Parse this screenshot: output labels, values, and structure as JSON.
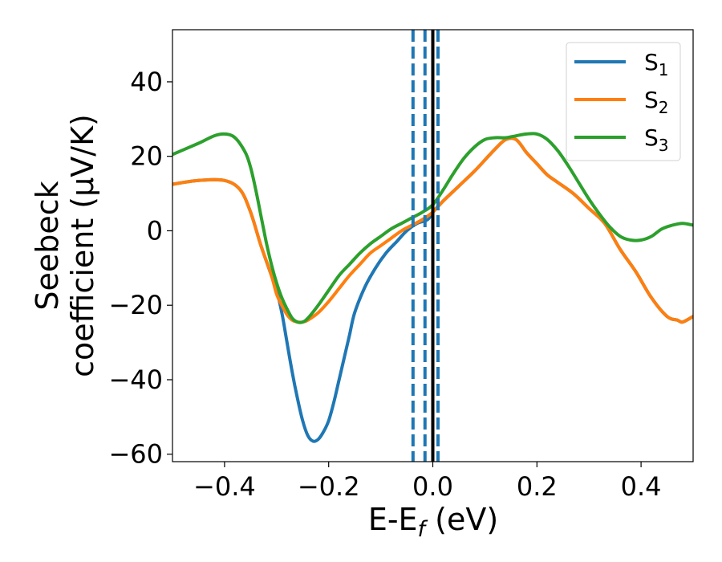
{
  "chart_data": {
    "type": "line",
    "xlabel": "E-E",
    "xlabel_sub": "f",
    "xlabel_unit": " (eV)",
    "ylabel_line1": "Seebeck",
    "ylabel_line2": "coefficient  (μV/K)",
    "xlim": [
      -0.5,
      0.5
    ],
    "ylim": [
      -62,
      54
    ],
    "xticks": [
      -0.4,
      -0.2,
      0.0,
      0.2,
      0.4
    ],
    "xtick_labels": [
      "−0.4",
      "−0.2",
      "0.0",
      "0.2",
      "0.4"
    ],
    "yticks": [
      -60,
      -40,
      -20,
      0,
      20,
      40
    ],
    "ytick_labels": [
      "−60",
      "−40",
      "−20",
      "0",
      "20",
      "40"
    ],
    "legend_position": "top-right",
    "vlines": [
      {
        "x": 0.0,
        "style": "solid",
        "color": "#000000"
      },
      {
        "x": -0.038,
        "style": "dashed",
        "color": "#1f77b4"
      },
      {
        "x": -0.015,
        "style": "dashed",
        "color": "#1f77b4"
      },
      {
        "x": 0.01,
        "style": "dashed",
        "color": "#1f77b4"
      }
    ],
    "series": [
      {
        "name": "S",
        "name_sub": "1",
        "color": "#1f77b4",
        "x": [
          -0.5,
          -0.45,
          -0.4,
          -0.37,
          -0.35,
          -0.33,
          -0.31,
          -0.3,
          -0.29,
          -0.28,
          -0.27,
          -0.26,
          -0.25,
          -0.24,
          -0.23,
          -0.22,
          -0.21,
          -0.2,
          -0.19,
          -0.18,
          -0.17,
          -0.16,
          -0.15,
          -0.13,
          -0.11,
          -0.09,
          -0.07,
          -0.05,
          -0.03,
          -0.01,
          0.0,
          0.02,
          0.05,
          0.08,
          0.1,
          0.12,
          0.14,
          0.16,
          0.18,
          0.2,
          0.22,
          0.24,
          0.27,
          0.3,
          0.33,
          0.36,
          0.39,
          0.42,
          0.45,
          0.47,
          0.48,
          0.5
        ],
        "y": [
          12.5,
          13.5,
          13.5,
          11,
          5,
          -4,
          -12,
          -16,
          -22,
          -30,
          -38,
          -45,
          -51,
          -55,
          -56.5,
          -56,
          -54,
          -51,
          -46,
          -40,
          -34,
          -28,
          -22,
          -15,
          -10,
          -6,
          -3,
          0,
          2,
          3,
          5,
          8,
          12,
          16,
          19,
          22,
          24.5,
          24.5,
          21,
          18,
          15,
          13,
          10,
          6,
          2,
          -5,
          -11,
          -18,
          -23,
          -24,
          -24.5,
          -23
        ]
      },
      {
        "name": "S",
        "name_sub": "2",
        "color": "#ff7f0e",
        "x": [
          -0.5,
          -0.45,
          -0.4,
          -0.37,
          -0.35,
          -0.33,
          -0.31,
          -0.3,
          -0.29,
          -0.28,
          -0.27,
          -0.26,
          -0.25,
          -0.24,
          -0.22,
          -0.2,
          -0.18,
          -0.16,
          -0.14,
          -0.12,
          -0.1,
          -0.08,
          -0.06,
          -0.04,
          -0.02,
          0.0,
          0.02,
          0.05,
          0.08,
          0.1,
          0.12,
          0.14,
          0.16,
          0.18,
          0.2,
          0.22,
          0.24,
          0.27,
          0.3,
          0.33,
          0.36,
          0.39,
          0.42,
          0.45,
          0.47,
          0.48,
          0.5
        ],
        "y": [
          12.5,
          13.5,
          13.5,
          11,
          5,
          -4,
          -12,
          -17,
          -20,
          -22.5,
          -24,
          -24.5,
          -24.5,
          -24,
          -22,
          -19,
          -15.5,
          -12,
          -9,
          -6,
          -4,
          -2,
          0,
          1.5,
          3,
          5,
          8,
          12,
          16,
          19,
          22,
          24.5,
          24.5,
          21,
          18,
          15,
          13,
          10,
          6,
          2,
          -5,
          -11,
          -18,
          -23,
          -24,
          -24.5,
          -23
        ]
      },
      {
        "name": "S",
        "name_sub": "3",
        "color": "#2ca02c",
        "x": [
          -0.5,
          -0.45,
          -0.42,
          -0.4,
          -0.38,
          -0.36,
          -0.35,
          -0.34,
          -0.33,
          -0.32,
          -0.31,
          -0.3,
          -0.29,
          -0.28,
          -0.27,
          -0.26,
          -0.25,
          -0.24,
          -0.22,
          -0.2,
          -0.18,
          -0.16,
          -0.14,
          -0.12,
          -0.1,
          -0.08,
          -0.06,
          -0.04,
          -0.02,
          0.0,
          0.02,
          0.04,
          0.06,
          0.08,
          0.1,
          0.12,
          0.14,
          0.16,
          0.18,
          0.2,
          0.22,
          0.24,
          0.26,
          0.28,
          0.3,
          0.32,
          0.34,
          0.36,
          0.38,
          0.4,
          0.42,
          0.44,
          0.46,
          0.48,
          0.5
        ],
        "y": [
          20.5,
          23.5,
          25.5,
          26,
          25,
          21,
          17,
          11,
          4,
          -3,
          -9,
          -14,
          -18,
          -21,
          -23.5,
          -24.5,
          -24.5,
          -23.5,
          -20,
          -16,
          -12,
          -9,
          -6,
          -3.5,
          -1.5,
          0.5,
          2,
          3.5,
          5,
          7,
          11,
          15.5,
          19.5,
          22.5,
          24.5,
          25,
          25,
          25.5,
          26,
          26,
          24.5,
          21.5,
          17.5,
          13,
          8.5,
          4.5,
          1,
          -1.5,
          -2.5,
          -2.5,
          -1.5,
          0.5,
          1.5,
          2,
          1.5
        ]
      }
    ]
  }
}
